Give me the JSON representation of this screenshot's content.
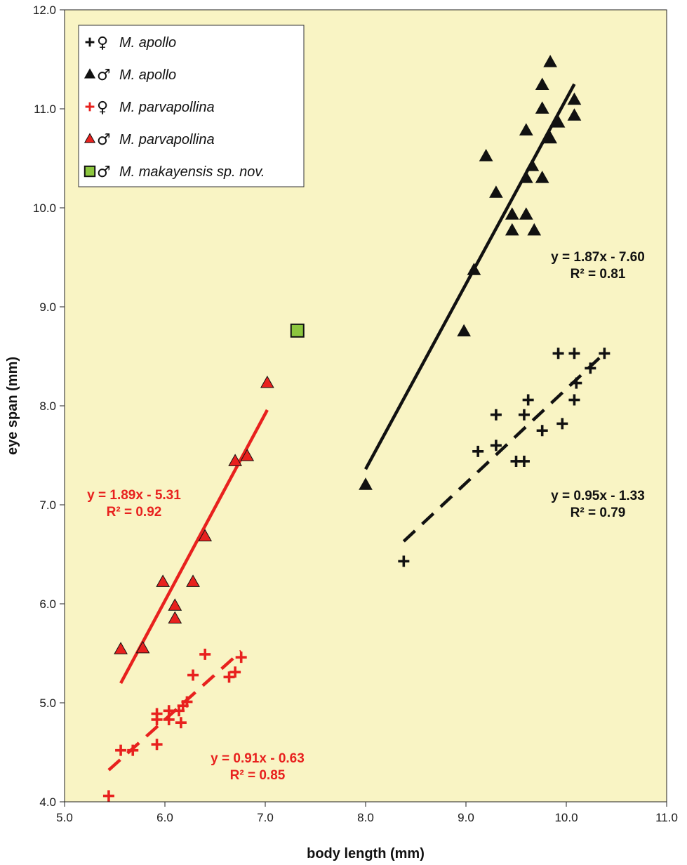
{
  "chart_data": {
    "type": "scatter",
    "title": "",
    "xlabel": "body length (mm)",
    "ylabel": "eye span (mm)",
    "xlim": [
      5.0,
      11.0
    ],
    "ylim": [
      4.0,
      12.0
    ],
    "xticks": [
      "5.0",
      "6.0",
      "7.0",
      "8.0",
      "9.0",
      "10.0",
      "11.0"
    ],
    "yticks": [
      "4.0",
      "5.0",
      "6.0",
      "7.0",
      "8.0",
      "9.0",
      "10.0",
      "11.0",
      "12.0"
    ],
    "grid": false,
    "legend_position": "top-left",
    "plot_background": "#f9f4c4",
    "series": [
      {
        "name": "M. apollo",
        "sex_symbol": "♀",
        "marker": "plus",
        "color": "#111111",
        "points": [
          [
            8.38,
            6.43
          ],
          [
            9.12,
            7.54
          ],
          [
            9.3,
            7.91
          ],
          [
            9.3,
            7.6
          ],
          [
            9.5,
            7.44
          ],
          [
            9.58,
            7.91
          ],
          [
            9.58,
            7.44
          ],
          [
            9.62,
            8.06
          ],
          [
            9.76,
            7.75
          ],
          [
            9.92,
            8.53
          ],
          [
            9.96,
            7.82
          ],
          [
            10.08,
            8.53
          ],
          [
            10.08,
            8.06
          ],
          [
            10.1,
            8.23
          ],
          [
            10.24,
            8.38
          ],
          [
            10.38,
            8.53
          ]
        ],
        "trendline": {
          "slope": 0.95,
          "intercept": -1.33,
          "x_range": [
            8.38,
            10.38
          ],
          "style": "dashed",
          "equation": "y = 0.95x - 1.33",
          "r2": "R² = 0.79"
        }
      },
      {
        "name": "M. apollo",
        "sex_symbol": "♂",
        "marker": "triangle",
        "color": "#111111",
        "points": [
          [
            8.0,
            7.2
          ],
          [
            8.98,
            8.75
          ],
          [
            9.08,
            9.37
          ],
          [
            9.2,
            10.52
          ],
          [
            9.3,
            10.15
          ],
          [
            9.46,
            9.93
          ],
          [
            9.46,
            9.77
          ],
          [
            9.6,
            10.78
          ],
          [
            9.6,
            10.3
          ],
          [
            9.6,
            9.93
          ],
          [
            9.66,
            10.42
          ],
          [
            9.68,
            9.77
          ],
          [
            9.76,
            11.24
          ],
          [
            9.76,
            11.0
          ],
          [
            9.76,
            10.3
          ],
          [
            9.84,
            11.47
          ],
          [
            9.84,
            10.7
          ],
          [
            9.92,
            10.86
          ],
          [
            10.08,
            11.09
          ],
          [
            10.08,
            10.93
          ]
        ],
        "trendline": {
          "slope": 1.87,
          "intercept": -7.6,
          "x_range": [
            8.0,
            10.08
          ],
          "style": "solid",
          "equation": "y = 1.87x - 7.60",
          "r2": "R² = 0.81"
        }
      },
      {
        "name": "M. parvapollina",
        "sex_symbol": "♀",
        "marker": "plus",
        "color": "#e8211e",
        "points": [
          [
            5.44,
            4.06
          ],
          [
            5.56,
            4.52
          ],
          [
            5.68,
            4.52
          ],
          [
            5.92,
            4.89
          ],
          [
            5.92,
            4.83
          ],
          [
            5.92,
            4.58
          ],
          [
            6.04,
            4.92
          ],
          [
            6.04,
            4.83
          ],
          [
            6.14,
            4.92
          ],
          [
            6.16,
            4.8
          ],
          [
            6.18,
            4.97
          ],
          [
            6.22,
            5.01
          ],
          [
            6.28,
            5.28
          ],
          [
            6.4,
            5.49
          ],
          [
            6.64,
            5.26
          ],
          [
            6.7,
            5.31
          ],
          [
            6.76,
            5.46
          ]
        ],
        "trendline": {
          "slope": 0.91,
          "intercept": -0.63,
          "x_range": [
            5.44,
            6.76
          ],
          "style": "dashed",
          "equation": "y = 0.91x - 0.63",
          "r2": "R² = 0.85"
        }
      },
      {
        "name": "M. parvapollina",
        "sex_symbol": "♂",
        "marker": "triangle",
        "color": "#e8211e",
        "points": [
          [
            5.56,
            5.54
          ],
          [
            5.78,
            5.55
          ],
          [
            5.98,
            6.22
          ],
          [
            6.1,
            5.98
          ],
          [
            6.1,
            5.85
          ],
          [
            6.28,
            6.22
          ],
          [
            6.4,
            6.68
          ],
          [
            6.7,
            7.44
          ],
          [
            6.82,
            7.49
          ],
          [
            7.02,
            8.23
          ]
        ],
        "trendline": {
          "slope": 1.89,
          "intercept": -5.31,
          "x_range": [
            5.56,
            7.02
          ],
          "style": "solid",
          "equation": "y = 1.89x - 5.31",
          "r2": "R² = 0.92"
        }
      },
      {
        "name": "M. makayensis sp. nov.",
        "sex_symbol": "♂",
        "marker": "square",
        "color": "#8cc63e",
        "points": [
          [
            7.32,
            8.76
          ]
        ]
      }
    ]
  }
}
